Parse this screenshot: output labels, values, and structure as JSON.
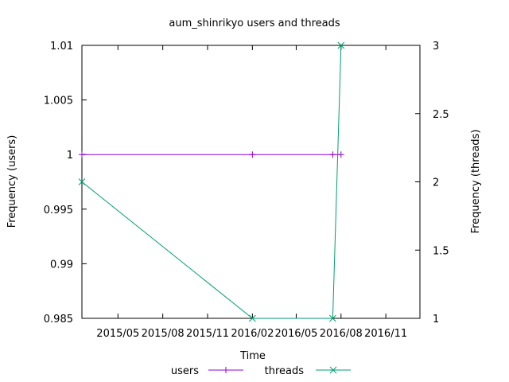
{
  "chart_data": {
    "type": "line",
    "title": "aum_shinrikyo users and threads",
    "xlabel": "Time",
    "ylabel_left": "Frequency (users)",
    "ylabel_right": "Frequency (threads)",
    "x_ticks": [
      "2015/05",
      "2015/08",
      "2015/11",
      "2016/02",
      "2016/05",
      "2016/08",
      "2016/11"
    ],
    "x_tick_dates": [
      "2015-05-01",
      "2015-08-01",
      "2015-11-01",
      "2016-02-01",
      "2016-05-01",
      "2016-08-01",
      "2016-11-01"
    ],
    "xlim": [
      "2015-02-16",
      "2017-01-10"
    ],
    "y_left_ticks": [
      "0.985",
      "0.99",
      "0.995",
      "1",
      "1.005",
      "1.01"
    ],
    "ylim_left": [
      0.985,
      1.01
    ],
    "y_right_ticks": [
      "1",
      "1.5",
      "2",
      "2.5",
      "3"
    ],
    "ylim_right": [
      1,
      3
    ],
    "legend_position": "bottom",
    "grid": false,
    "series": [
      {
        "name": "users",
        "axis": "left",
        "color": "#9400d3",
        "marker": "plus",
        "points": [
          {
            "x": "2015-02-16",
            "y": 1
          },
          {
            "x": "2016-02-01",
            "y": 1
          },
          {
            "x": "2016-07-15",
            "y": 1
          },
          {
            "x": "2016-08-01",
            "y": 1
          }
        ]
      },
      {
        "name": "threads",
        "axis": "right",
        "color": "#009e73",
        "marker": "cross",
        "points": [
          {
            "x": "2015-02-16",
            "y": 2
          },
          {
            "x": "2016-02-01",
            "y": 1
          },
          {
            "x": "2016-07-15",
            "y": 1
          },
          {
            "x": "2016-08-01",
            "y": 3
          }
        ]
      }
    ]
  }
}
